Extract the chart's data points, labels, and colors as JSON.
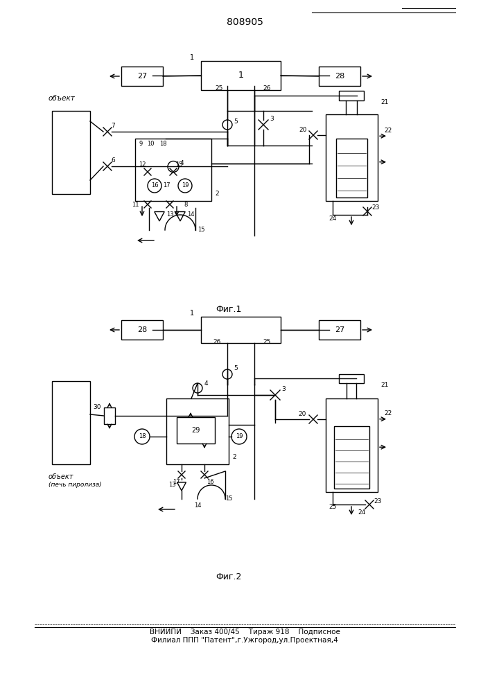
{
  "title": "808905",
  "fig1_label": "Фиг.1",
  "fig2_label": "Фиг.2",
  "footer_line1": "ВНИИПИ    Заказ 400/45    Тираж 918    Подписное",
  "footer_line2": "Филиал ППП \"Патент\",г.Ужгород,ул.Проектная,4",
  "bg_color": "#ffffff",
  "line_color": "#000000"
}
